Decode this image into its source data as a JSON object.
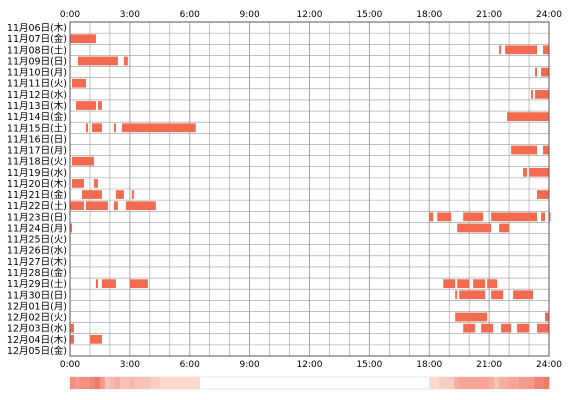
{
  "chart_data": {
    "type": "timeline-heatmap",
    "title": "",
    "x_axis": {
      "unit": "time of day",
      "range": [
        "0:00",
        "24:00"
      ],
      "ticks": [
        "0:00",
        "3:00",
        "6:00",
        "9:00",
        "12:00",
        "15:00",
        "18:00",
        "21:00",
        "24:00"
      ]
    },
    "grid": true,
    "colors": {
      "bar_main": "#f26a4f",
      "bar_light": "#f59a7a",
      "grid": "#999999",
      "border": "#555555",
      "density_strip_low": "#fde2d8",
      "density_strip_high": "#f08a78"
    },
    "rows": [
      {
        "label": "11月06日(木)",
        "segments": []
      },
      {
        "label": "11月07日(金)",
        "segments": [
          [
            0.0,
            1.3
          ]
        ]
      },
      {
        "label": "11月08日(土)",
        "segments": [
          [
            21.5,
            21.6
          ],
          [
            21.8,
            23.4
          ],
          [
            23.7,
            24.0
          ]
        ]
      },
      {
        "label": "11月09日(日)",
        "segments": [
          [
            0.4,
            2.4
          ],
          [
            2.7,
            2.9
          ]
        ]
      },
      {
        "label": "11月10日(月)",
        "segments": [
          [
            23.3,
            23.4
          ],
          [
            23.6,
            24.0
          ]
        ]
      },
      {
        "label": "11月11日(火)",
        "segments": [
          [
            0.1,
            0.8
          ]
        ]
      },
      {
        "label": "11月12日(水)",
        "segments": [
          [
            23.1,
            23.2
          ],
          [
            23.3,
            24.0
          ]
        ]
      },
      {
        "label": "11月13日(木)",
        "segments": [
          [
            0.3,
            1.3
          ],
          [
            1.4,
            1.6
          ]
        ]
      },
      {
        "label": "11月14日(金)",
        "segments": [
          [
            21.9,
            24.0
          ]
        ]
      },
      {
        "label": "11月15日(土)",
        "segments": [
          [
            0.8,
            0.9
          ],
          [
            1.1,
            1.6
          ],
          [
            2.2,
            2.3
          ],
          [
            2.6,
            6.3
          ]
        ]
      },
      {
        "label": "11月16日(日)",
        "segments": []
      },
      {
        "label": "11月17日(月)",
        "segments": [
          [
            22.1,
            23.4
          ],
          [
            23.7,
            24.0
          ]
        ]
      },
      {
        "label": "11月18日(火)",
        "segments": [
          [
            0.1,
            1.2
          ]
        ]
      },
      {
        "label": "11月19日(水)",
        "segments": [
          [
            22.7,
            22.9
          ],
          [
            23.0,
            24.0
          ]
        ]
      },
      {
        "label": "11月20日(木)",
        "segments": [
          [
            0.1,
            0.7
          ],
          [
            1.2,
            1.4
          ]
        ]
      },
      {
        "label": "11月21日(金)",
        "segments": [
          [
            0.6,
            1.6
          ],
          [
            2.3,
            2.7
          ],
          [
            3.1,
            3.2
          ],
          [
            23.4,
            24.0
          ]
        ]
      },
      {
        "label": "11月22日(土)",
        "segments": [
          [
            0.0,
            0.7
          ],
          [
            0.8,
            1.9
          ],
          [
            2.2,
            2.4
          ],
          [
            2.8,
            4.3
          ]
        ]
      },
      {
        "label": "11月23日(日)",
        "segments": [
          [
            18.0,
            18.2
          ],
          [
            18.4,
            19.1
          ],
          [
            19.7,
            20.7
          ],
          [
            21.1,
            23.4
          ],
          [
            23.6,
            23.8
          ],
          [
            24.0,
            24.0
          ]
        ]
      },
      {
        "label": "11月24日(月)",
        "segments": [
          [
            0.0,
            0.1
          ],
          [
            19.4,
            21.1
          ],
          [
            21.5,
            22.0
          ]
        ]
      },
      {
        "label": "11月25日(火)",
        "segments": []
      },
      {
        "label": "11月26日(水)",
        "segments": []
      },
      {
        "label": "11月27日(木)",
        "segments": []
      },
      {
        "label": "11月28日(金)",
        "segments": []
      },
      {
        "label": "11月29日(土)",
        "segments": [
          [
            1.3,
            1.4
          ],
          [
            1.6,
            2.3
          ],
          [
            3.0,
            3.9
          ],
          [
            18.7,
            19.3
          ],
          [
            19.4,
            20.0
          ],
          [
            20.2,
            20.8
          ],
          [
            20.9,
            21.4
          ]
        ]
      },
      {
        "label": "11月30日(日)",
        "segments": [
          [
            19.3,
            19.4
          ],
          [
            19.5,
            20.8
          ],
          [
            21.1,
            21.7
          ],
          [
            22.2,
            23.2
          ]
        ]
      },
      {
        "label": "12月01日(月)",
        "segments": []
      },
      {
        "label": "12月02日(火)",
        "segments": [
          [
            19.3,
            20.9
          ],
          [
            23.8,
            24.0
          ]
        ]
      },
      {
        "label": "12月03日(水)",
        "segments": [
          [
            0.0,
            0.2
          ],
          [
            19.7,
            20.3
          ],
          [
            20.6,
            21.2
          ],
          [
            21.6,
            22.1
          ],
          [
            22.4,
            23.0
          ],
          [
            23.4,
            24.0
          ]
        ]
      },
      {
        "label": "12月04日(木)",
        "segments": [
          [
            0.0,
            0.2
          ],
          [
            1.0,
            1.6
          ]
        ]
      },
      {
        "label": "12月05日(金)",
        "segments": []
      }
    ]
  }
}
